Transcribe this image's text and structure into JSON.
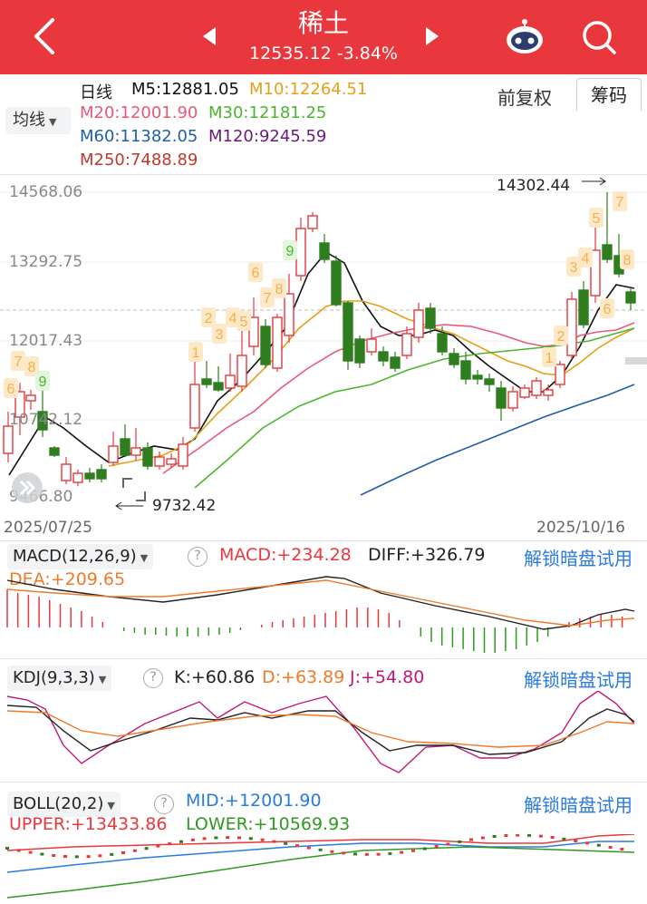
{
  "header": {
    "title": "稀土",
    "price": "12535.12",
    "change": "-3.84%"
  },
  "toolbar": {
    "period": "日线",
    "ma_button": "均线",
    "fuquan": "前复权",
    "chouma": "筹码"
  },
  "ma_legend": {
    "m5": "M5:12881.05",
    "m10": "M10:12264.51",
    "m20": "M20:12001.90",
    "m30": "M30:12181.25",
    "m60": "M60:11382.05",
    "m120": "M120:9245.59",
    "m250": "M250:7488.89"
  },
  "colors": {
    "header_red": "#e8383d",
    "up": "#e8383d",
    "down": "#2e7d1f",
    "m5": "#111111",
    "m10": "#e6a015",
    "m20": "#e8587a",
    "m30": "#4cb52e",
    "m60": "#1f5fa8",
    "m120": "#6a1b7a",
    "m250": "#c0392b",
    "unlock": "#2a7be0"
  },
  "main_chart": {
    "y_labels": [
      "14568.06",
      "13292.75",
      "12017.43",
      "10742.12",
      "9466.80"
    ],
    "high_label": "14302.44",
    "low_label": "9732.42",
    "date_start": "2025/07/25",
    "date_end": "2025/10/16",
    "markers": [
      {
        "t": "6",
        "c": "#f5b04a"
      },
      {
        "t": "7",
        "c": "#f5b04a"
      },
      {
        "t": "8",
        "c": "#f5b04a"
      },
      {
        "t": "9",
        "c": "#4cb52e"
      },
      {
        "t": "1",
        "c": "#f5b04a"
      },
      {
        "t": "2",
        "c": "#f5b04a"
      },
      {
        "t": "3",
        "c": "#f5b04a"
      },
      {
        "t": "4",
        "c": "#f5b04a"
      },
      {
        "t": "5",
        "c": "#f5b04a"
      },
      {
        "t": "6",
        "c": "#f5b04a"
      },
      {
        "t": "7",
        "c": "#f5b04a"
      },
      {
        "t": "8",
        "c": "#f5b04a"
      },
      {
        "t": "9",
        "c": "#4cb52e"
      },
      {
        "t": "1",
        "c": "#f5b04a"
      },
      {
        "t": "2",
        "c": "#f5b04a"
      },
      {
        "t": "3",
        "c": "#f5b04a"
      },
      {
        "t": "4",
        "c": "#f5b04a"
      },
      {
        "t": "5",
        "c": "#f5b04a"
      },
      {
        "t": "6",
        "c": "#f5b04a"
      },
      {
        "t": "7",
        "c": "#f5b04a"
      },
      {
        "t": "8",
        "c": "#f5b04a"
      }
    ]
  },
  "macd": {
    "name": "MACD(12,26,9)",
    "macd": "MACD:+234.28",
    "diff": "DIFF:+326.79",
    "dea": "DEA:+209.65",
    "unlock": "解锁暗盘试用"
  },
  "kdj": {
    "name": "KDJ(9,3,3)",
    "k": "K:+60.86",
    "d": "D:+63.89",
    "j": "J:+54.80",
    "unlock": "解锁暗盘试用"
  },
  "boll": {
    "name": "BOLL(20,2)",
    "mid": "MID:+12001.90",
    "upper": "UPPER:+13433.86",
    "lower": "LOWER:+10569.93",
    "unlock": "解锁暗盘试用"
  }
}
